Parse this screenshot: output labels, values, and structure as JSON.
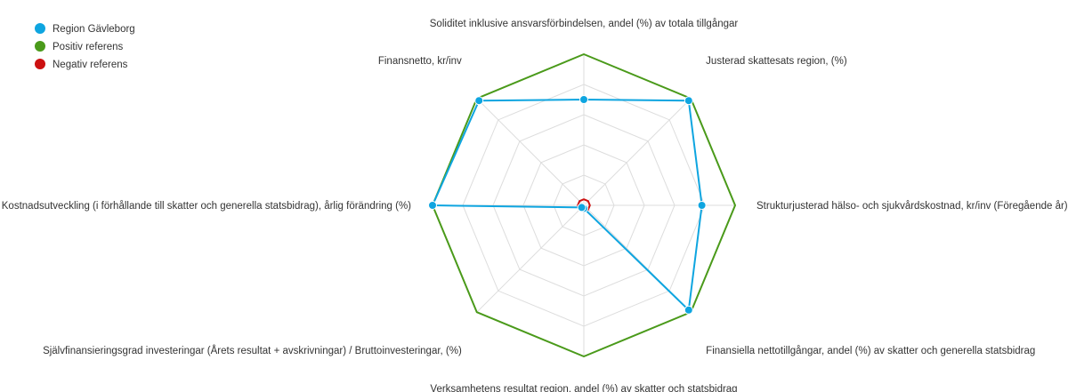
{
  "chart_data": {
    "type": "radar",
    "title": "",
    "axes": [
      "Soliditet inklusive ansvarsförbindelsen, andel (%) av totala tillgångar",
      "Justerad skattesats region, (%)",
      "Strukturjusterad hälso- och sjukvårdskostnad, kr/inv (Föregående år)",
      "Finansiella nettotillgångar, andel (%) av skatter och generella statsbidrag",
      "Verksamhetens resultat region, andel (%) av skatter och statsbidrag",
      "Självfinansieringsgrad investeringar (Årets resultat + avskrivningar) / Bruttoinvesteringar, (%)",
      "Kostnadsutveckling (i förhållande till skatter och generella statsbidrag), årlig förändring (%)",
      "Finansnetto, kr/inv"
    ],
    "range": [
      0,
      1
    ],
    "grid": true,
    "grid_levels": 5,
    "legend_position": "top-left",
    "series": [
      {
        "name": "Region Gävleborg",
        "color": "#0ea5e0",
        "markers": true,
        "values": [
          0.7,
          0.98,
          0.78,
          0.98,
          0.02,
          0.02,
          1.0,
          0.98
        ]
      },
      {
        "name": "Positiv referens",
        "color": "#4a9a1a",
        "markers": false,
        "values": [
          1,
          1,
          1,
          1,
          1,
          1,
          1,
          1
        ]
      },
      {
        "name": "Negativ referens",
        "color": "#cc1111",
        "markers": false,
        "values": [
          0.04,
          0.04,
          0.04,
          0.04,
          0.04,
          0.04,
          0.04,
          0.04
        ]
      }
    ]
  }
}
